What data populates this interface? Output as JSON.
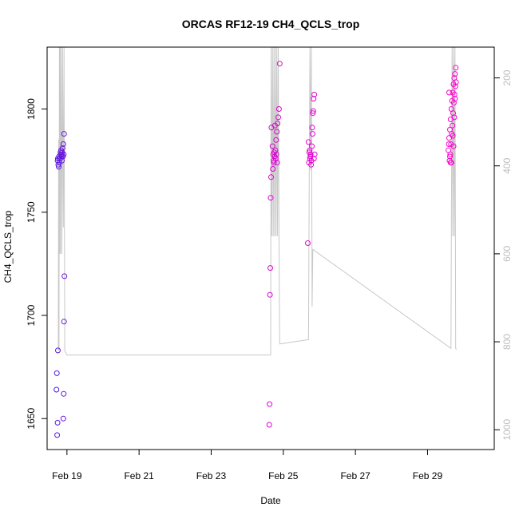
{
  "chart_data": {
    "type": "scatter",
    "title": "ORCAS RF12-19 CH4_QCLS_trop",
    "xlabel": "Date",
    "ylabel": "CH4_QCLS_trop",
    "x_ticks": [
      "Feb 19",
      "Feb 21",
      "Feb 23",
      "Feb 25",
      "Feb 27",
      "Feb 29"
    ],
    "x_tick_values": [
      19,
      21,
      23,
      25,
      27,
      29
    ],
    "xlim": [
      18.45,
      30.85
    ],
    "ylim": [
      1635,
      1830
    ],
    "y_ticks": [
      1650,
      1700,
      1750,
      1800
    ],
    "y2_ticks": [
      200,
      400,
      600,
      800,
      1000
    ],
    "y2lim": [
      1045,
      130
    ],
    "grid": false,
    "legend": "none",
    "colors": {
      "early": "#3b1fe0",
      "late": "#ff00cc",
      "pressure_line": "#c8c8c8",
      "frame": "#000000"
    },
    "pressure_trace": [
      [
        18.76,
        820
      ],
      [
        18.77,
        340
      ],
      [
        18.78,
        820
      ],
      [
        18.79,
        120
      ],
      [
        18.8,
        600
      ],
      [
        18.81,
        120
      ],
      [
        18.82,
        600
      ],
      [
        18.84,
        120
      ],
      [
        18.86,
        600
      ],
      [
        18.88,
        120
      ],
      [
        18.9,
        540
      ],
      [
        18.92,
        120
      ],
      [
        18.94,
        820
      ],
      [
        19.0,
        830
      ],
      [
        22.7,
        830
      ],
      [
        23.5,
        830
      ],
      [
        24.65,
        830
      ],
      [
        24.66,
        120
      ],
      [
        24.68,
        560
      ],
      [
        24.7,
        120
      ],
      [
        24.72,
        560
      ],
      [
        24.74,
        120
      ],
      [
        24.76,
        560
      ],
      [
        24.78,
        120
      ],
      [
        24.8,
        560
      ],
      [
        24.82,
        120
      ],
      [
        24.84,
        560
      ],
      [
        24.86,
        120
      ],
      [
        24.88,
        560
      ],
      [
        24.9,
        805
      ],
      [
        25.7,
        795
      ],
      [
        25.72,
        420
      ],
      [
        25.74,
        120
      ],
      [
        25.76,
        410
      ],
      [
        25.78,
        120
      ],
      [
        25.8,
        720
      ],
      [
        25.82,
        590
      ],
      [
        29.65,
        815
      ],
      [
        29.66,
        540
      ],
      [
        29.68,
        120
      ],
      [
        29.7,
        560
      ],
      [
        29.72,
        120
      ],
      [
        29.74,
        560
      ],
      [
        29.76,
        120
      ],
      [
        29.78,
        815
      ],
      [
        29.8,
        818
      ]
    ],
    "points": [
      [
        18.75,
        1683
      ],
      [
        18.72,
        1672
      ],
      [
        18.71,
        1664
      ],
      [
        18.74,
        1648
      ],
      [
        18.73,
        1642
      ],
      [
        18.92,
        1697
      ],
      [
        18.93,
        1719
      ],
      [
        18.91,
        1662
      ],
      [
        18.9,
        1650
      ],
      [
        18.74,
        1775
      ],
      [
        18.76,
        1773
      ],
      [
        18.78,
        1777
      ],
      [
        18.8,
        1776
      ],
      [
        18.82,
        1779
      ],
      [
        18.84,
        1780
      ],
      [
        18.86,
        1778
      ],
      [
        18.88,
        1781
      ],
      [
        18.9,
        1783
      ],
      [
        18.92,
        1788
      ],
      [
        18.77,
        1772
      ],
      [
        18.79,
        1774
      ],
      [
        18.81,
        1776
      ],
      [
        18.83,
        1778
      ],
      [
        18.85,
        1777
      ],
      [
        18.87,
        1779
      ],
      [
        18.89,
        1777
      ],
      [
        18.91,
        1778
      ],
      [
        18.75,
        1776
      ],
      [
        18.86,
        1775
      ],
      [
        24.62,
        1657
      ],
      [
        24.61,
        1647
      ],
      [
        24.63,
        1710
      ],
      [
        24.64,
        1723
      ],
      [
        24.65,
        1757
      ],
      [
        24.66,
        1767
      ],
      [
        24.67,
        1791
      ],
      [
        24.7,
        1782
      ],
      [
        24.72,
        1778
      ],
      [
        24.74,
        1774
      ],
      [
        24.76,
        1777
      ],
      [
        24.78,
        1780
      ],
      [
        24.8,
        1785
      ],
      [
        24.82,
        1789
      ],
      [
        24.84,
        1793
      ],
      [
        24.86,
        1796
      ],
      [
        24.88,
        1800
      ],
      [
        24.9,
        1822
      ],
      [
        24.71,
        1771
      ],
      [
        24.73,
        1775
      ],
      [
        24.75,
        1779
      ],
      [
        24.79,
        1776
      ],
      [
        24.81,
        1778
      ],
      [
        24.83,
        1774
      ],
      [
        24.77,
        1792
      ],
      [
        25.68,
        1735
      ],
      [
        25.7,
        1784
      ],
      [
        25.72,
        1779
      ],
      [
        25.74,
        1776
      ],
      [
        25.76,
        1778
      ],
      [
        25.78,
        1775
      ],
      [
        25.8,
        1791
      ],
      [
        25.82,
        1798
      ],
      [
        25.84,
        1805
      ],
      [
        25.86,
        1807
      ],
      [
        25.71,
        1774
      ],
      [
        25.73,
        1780
      ],
      [
        25.75,
        1777
      ],
      [
        25.77,
        1773
      ],
      [
        25.79,
        1782
      ],
      [
        25.81,
        1788
      ],
      [
        25.83,
        1799
      ],
      [
        25.85,
        1776
      ],
      [
        25.87,
        1778
      ],
      [
        29.58,
        1780
      ],
      [
        29.6,
        1786
      ],
      [
        29.62,
        1790
      ],
      [
        29.64,
        1795
      ],
      [
        29.66,
        1800
      ],
      [
        29.68,
        1804
      ],
      [
        29.7,
        1808
      ],
      [
        29.72,
        1812
      ],
      [
        29.74,
        1815
      ],
      [
        29.76,
        1817
      ],
      [
        29.78,
        1820
      ],
      [
        29.61,
        1775
      ],
      [
        29.63,
        1778
      ],
      [
        29.65,
        1783
      ],
      [
        29.67,
        1788
      ],
      [
        29.69,
        1792
      ],
      [
        29.71,
        1798
      ],
      [
        29.73,
        1803
      ],
      [
        29.75,
        1807
      ],
      [
        29.77,
        1811
      ],
      [
        29.79,
        1813
      ],
      [
        29.59,
        1783
      ],
      [
        29.62,
        1777
      ],
      [
        29.66,
        1774
      ],
      [
        29.7,
        1787
      ],
      [
        29.74,
        1796
      ],
      [
        29.76,
        1805
      ],
      [
        29.6,
        1808
      ],
      [
        29.64,
        1774
      ],
      [
        29.72,
        1782
      ]
    ]
  }
}
